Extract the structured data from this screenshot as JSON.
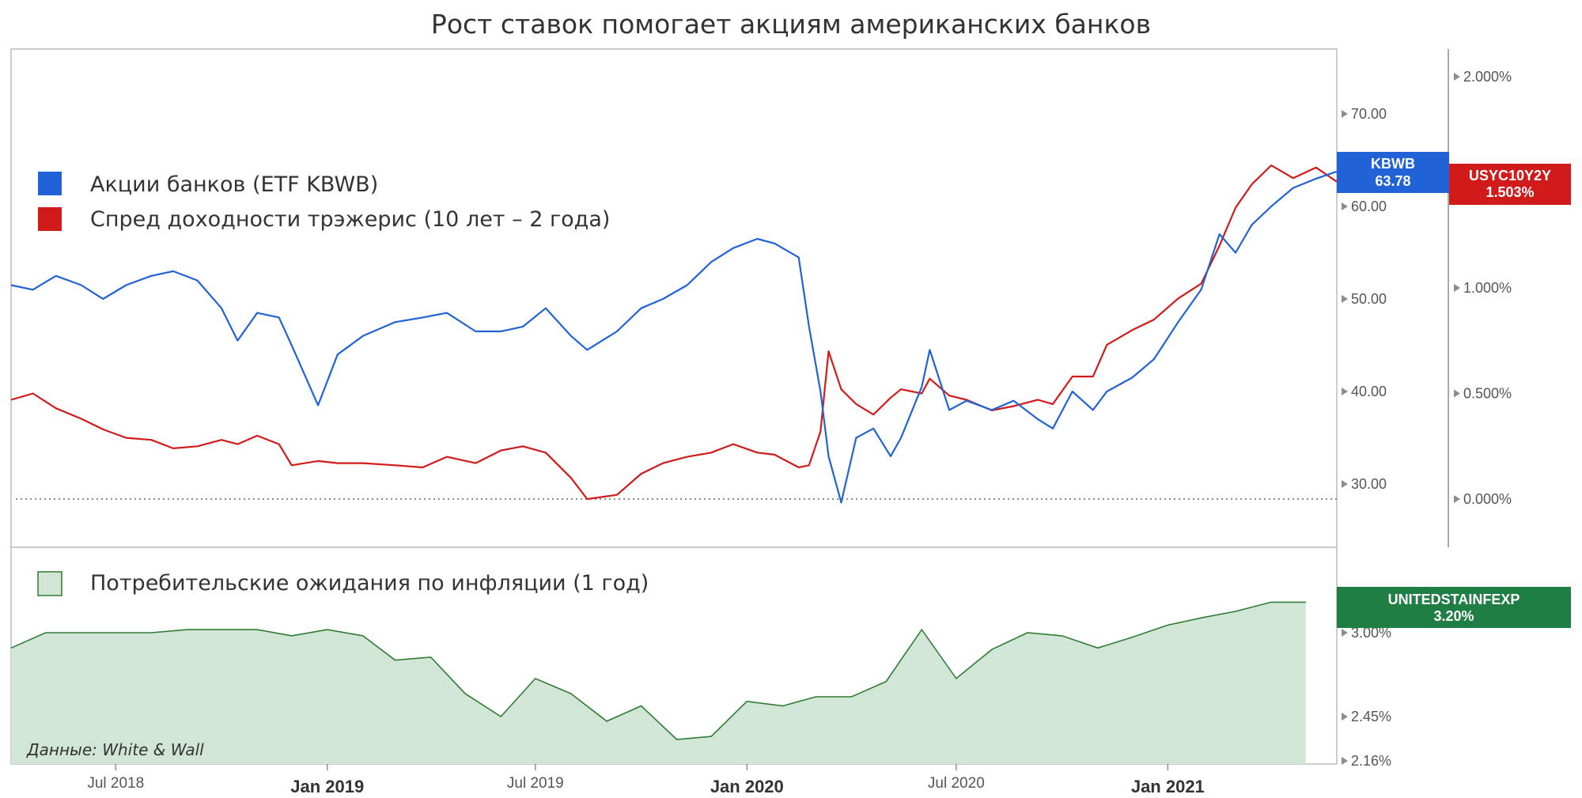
{
  "chart_data": {
    "title": "Рост ставок помогает акциям американских банков",
    "source_note": "Данные: White & Wall",
    "x_range": [
      "2018-04-01",
      "2021-05-28"
    ],
    "x_ticks": [
      {
        "date": "2018-07-01",
        "label": "Jul 2018",
        "bold": false
      },
      {
        "date": "2019-01-01",
        "label": "Jan 2019",
        "bold": true
      },
      {
        "date": "2019-07-01",
        "label": "Jul 2019",
        "bold": false
      },
      {
        "date": "2020-01-01",
        "label": "Jan 2020",
        "bold": true
      },
      {
        "date": "2020-07-01",
        "label": "Jul 2020",
        "bold": false
      },
      {
        "date": "2021-01-01",
        "label": "Jan 2021",
        "bold": true
      }
    ],
    "top_panel": {
      "type": "line",
      "legend": [
        {
          "label": "Акции банков (ETF KBWB)",
          "color": "#2163d6"
        },
        {
          "label": "Спред доходности трэжерис (10 лет – 2 года)",
          "color": "#d11a1a"
        }
      ],
      "left_axis": {
        "ticks": [
          {
            "value": 70,
            "label": "70.00"
          },
          {
            "value": 60,
            "label": "60.00"
          },
          {
            "value": 50,
            "label": "50.00"
          },
          {
            "value": 40,
            "label": "40.00"
          },
          {
            "value": 30,
            "label": "30.00"
          }
        ]
      },
      "right_axis": {
        "ticks": [
          {
            "value": 2.0,
            "label": "2.000%"
          },
          {
            "value": 1.0,
            "label": "1.000%"
          },
          {
            "value": 0.5,
            "label": "0.500%"
          },
          {
            "value": 0.0,
            "label": "0.000%"
          }
        ]
      },
      "series": [
        {
          "name": "KBWB",
          "color": "#2163d6",
          "axis": "left",
          "last_value": "63.78",
          "x": [
            "2018-04-01",
            "2018-04-20",
            "2018-05-10",
            "2018-06-01",
            "2018-06-20",
            "2018-07-10",
            "2018-08-01",
            "2018-08-20",
            "2018-09-10",
            "2018-10-01",
            "2018-10-15",
            "2018-11-01",
            "2018-11-20",
            "2018-12-01",
            "2018-12-24",
            "2019-01-10",
            "2019-02-01",
            "2019-03-01",
            "2019-03-25",
            "2019-04-15",
            "2019-05-10",
            "2019-06-01",
            "2019-06-20",
            "2019-07-10",
            "2019-08-01",
            "2019-08-15",
            "2019-09-10",
            "2019-10-01",
            "2019-10-20",
            "2019-11-10",
            "2019-12-01",
            "2019-12-20",
            "2020-01-10",
            "2020-01-25",
            "2020-02-15",
            "2020-02-24",
            "2020-03-05",
            "2020-03-12",
            "2020-03-23",
            "2020-04-05",
            "2020-04-20",
            "2020-05-05",
            "2020-05-14",
            "2020-06-01",
            "2020-06-08",
            "2020-06-25",
            "2020-07-10",
            "2020-08-01",
            "2020-08-20",
            "2020-09-10",
            "2020-09-23",
            "2020-10-10",
            "2020-10-28",
            "2020-11-09",
            "2020-12-01",
            "2020-12-20",
            "2021-01-10",
            "2021-01-30",
            "2021-02-15",
            "2021-03-01",
            "2021-03-15",
            "2021-04-01",
            "2021-04-20",
            "2021-05-10",
            "2021-05-28"
          ],
          "y": [
            51.5,
            51.0,
            52.5,
            51.5,
            50.0,
            51.5,
            52.5,
            53.0,
            52.0,
            49.0,
            45.5,
            48.5,
            48.0,
            45.0,
            38.5,
            44.0,
            46.0,
            47.5,
            48.0,
            48.5,
            46.5,
            46.5,
            47.0,
            49.0,
            46.0,
            44.5,
            46.5,
            49.0,
            50.0,
            51.5,
            54.0,
            55.5,
            56.5,
            56.0,
            54.5,
            47.0,
            40.0,
            33.0,
            28.0,
            35.0,
            36.0,
            33.0,
            35.0,
            40.5,
            44.5,
            38.0,
            39.0,
            38.0,
            39.0,
            37.0,
            36.0,
            40.0,
            38.0,
            40.0,
            41.5,
            43.5,
            47.5,
            51.0,
            57.0,
            55.0,
            58.0,
            60.0,
            62.0,
            63.0,
            63.78
          ]
        },
        {
          "name": "USYC10Y2Y",
          "color": "#d11a1a",
          "axis": "right",
          "last_value": "1.503%",
          "x": [
            "2018-04-01",
            "2018-04-20",
            "2018-05-10",
            "2018-06-01",
            "2018-06-20",
            "2018-07-10",
            "2018-08-01",
            "2018-08-20",
            "2018-09-10",
            "2018-10-01",
            "2018-10-15",
            "2018-11-01",
            "2018-11-20",
            "2018-12-01",
            "2018-12-24",
            "2019-01-10",
            "2019-02-01",
            "2019-03-01",
            "2019-03-25",
            "2019-04-15",
            "2019-05-10",
            "2019-06-01",
            "2019-06-20",
            "2019-07-10",
            "2019-08-01",
            "2019-08-15",
            "2019-09-10",
            "2019-10-01",
            "2019-10-20",
            "2019-11-10",
            "2019-12-01",
            "2019-12-20",
            "2020-01-10",
            "2020-01-25",
            "2020-02-15",
            "2020-02-24",
            "2020-03-05",
            "2020-03-12",
            "2020-03-23",
            "2020-04-05",
            "2020-04-20",
            "2020-05-05",
            "2020-05-14",
            "2020-06-01",
            "2020-06-08",
            "2020-06-25",
            "2020-07-10",
            "2020-08-01",
            "2020-08-20",
            "2020-09-10",
            "2020-09-23",
            "2020-10-10",
            "2020-10-28",
            "2020-11-09",
            "2020-12-01",
            "2020-12-20",
            "2021-01-10",
            "2021-01-30",
            "2021-02-15",
            "2021-03-01",
            "2021-03-15",
            "2021-04-01",
            "2021-04-20",
            "2021-05-10",
            "2021-05-28"
          ],
          "y": [
            0.47,
            0.5,
            0.43,
            0.38,
            0.33,
            0.29,
            0.28,
            0.24,
            0.25,
            0.28,
            0.26,
            0.3,
            0.26,
            0.16,
            0.18,
            0.17,
            0.17,
            0.16,
            0.15,
            0.2,
            0.17,
            0.23,
            0.25,
            0.22,
            0.1,
            0.0,
            0.02,
            0.12,
            0.17,
            0.2,
            0.22,
            0.26,
            0.22,
            0.21,
            0.15,
            0.16,
            0.32,
            0.7,
            0.52,
            0.45,
            0.4,
            0.48,
            0.52,
            0.5,
            0.57,
            0.49,
            0.47,
            0.42,
            0.44,
            0.47,
            0.45,
            0.58,
            0.58,
            0.73,
            0.8,
            0.85,
            0.95,
            1.02,
            1.2,
            1.38,
            1.49,
            1.58,
            1.52,
            1.57,
            1.503
          ]
        }
      ],
      "tags": [
        {
          "label": "KBWB",
          "value": "63.78",
          "color": "#2163d6"
        },
        {
          "label": "USYC10Y2Y",
          "value": "1.503%",
          "color": "#d11a1a"
        }
      ]
    },
    "bottom_panel": {
      "type": "area",
      "legend": [
        {
          "label": "Потребительские ожидания по инфляции (1 год)",
          "color": "#2e7d32"
        }
      ],
      "axis": {
        "ticks": [
          {
            "value": 3.0,
            "label": "3.00%"
          },
          {
            "value": 2.45,
            "label": "2.45%"
          },
          {
            "value": 2.16,
            "label": "2.16%"
          }
        ]
      },
      "series": [
        {
          "name": "UNITEDSTAINFEXP",
          "color": "#2e7d32",
          "fill": "#d2e6d8",
          "last_value": "3.20%",
          "x": [
            "2018-04-01",
            "2018-05-01",
            "2018-06-01",
            "2018-07-01",
            "2018-08-01",
            "2018-09-01",
            "2018-10-01",
            "2018-11-01",
            "2018-12-01",
            "2019-01-01",
            "2019-02-01",
            "2019-03-01",
            "2019-04-01",
            "2019-05-01",
            "2019-06-01",
            "2019-07-01",
            "2019-08-01",
            "2019-09-01",
            "2019-10-01",
            "2019-11-01",
            "2019-12-01",
            "2020-01-01",
            "2020-02-01",
            "2020-03-01",
            "2020-04-01",
            "2020-05-01",
            "2020-06-01",
            "2020-07-01",
            "2020-08-01",
            "2020-09-01",
            "2020-10-01",
            "2020-11-01",
            "2020-12-01",
            "2021-01-01",
            "2021-02-01",
            "2021-03-01",
            "2021-04-01",
            "2021-05-01"
          ],
          "y": [
            2.9,
            3.0,
            3.0,
            3.0,
            3.0,
            3.02,
            3.02,
            3.02,
            2.98,
            3.02,
            2.98,
            2.82,
            2.84,
            2.6,
            2.45,
            2.7,
            2.6,
            2.42,
            2.52,
            2.3,
            2.32,
            2.55,
            2.52,
            2.58,
            2.58,
            2.68,
            3.02,
            2.7,
            2.89,
            3.0,
            2.98,
            2.9,
            2.97,
            3.05,
            3.1,
            3.14,
            3.2,
            3.2
          ]
        }
      ],
      "tags": [
        {
          "label": "UNITEDSTAINFEXP",
          "value": "3.20%",
          "color": "#2e7d32"
        }
      ]
    }
  }
}
